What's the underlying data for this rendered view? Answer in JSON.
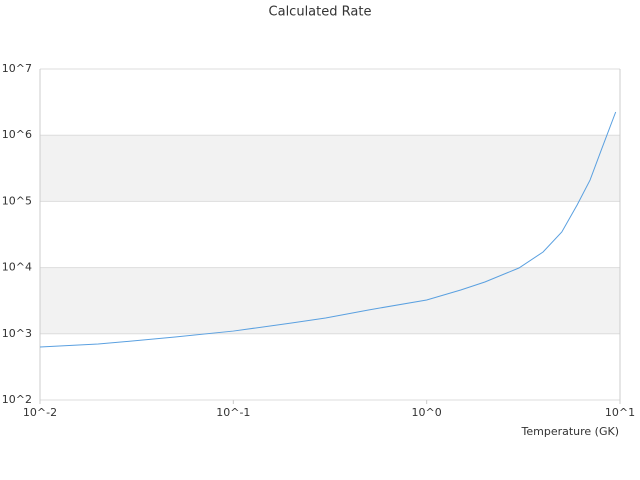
{
  "chart_data": {
    "type": "line",
    "title": "Calculated Rate",
    "x_label": "Temperature (GK)",
    "x": [
      0.01,
      0.02,
      0.03,
      0.05,
      0.1,
      0.2,
      0.3,
      0.5,
      1,
      1.5,
      2,
      3,
      4,
      5,
      6,
      7,
      8,
      9.5
    ],
    "series": [
      {
        "name": "Calculated Rate",
        "color": "#5aa0e0",
        "values": [
          631,
          700,
          778,
          895,
          1100,
          1455,
          1733,
          2291,
          3243,
          4592,
          6058,
          9860,
          17200,
          34500,
          88300,
          210000,
          597000,
          2240000
        ]
      }
    ],
    "xlim": [
      0.01,
      10
    ],
    "ylim": [
      100,
      10000000
    ],
    "xscale": "log",
    "yscale": "log",
    "xticks": [
      {
        "value": 0.01,
        "label": "10^-2"
      },
      {
        "value": 0.1,
        "label": "10^-1"
      },
      {
        "value": 1,
        "label": "10^0"
      },
      {
        "value": 10,
        "label": "10^1"
      }
    ],
    "yticks": [
      {
        "value": 100,
        "label": "10^2"
      },
      {
        "value": 1000,
        "label": "10^3"
      },
      {
        "value": 10000,
        "label": "10^4"
      },
      {
        "value": 100000,
        "label": "10^5"
      },
      {
        "value": 1000000,
        "label": "10^6"
      },
      {
        "value": 10000000,
        "label": "10^7"
      }
    ],
    "grid": true
  }
}
